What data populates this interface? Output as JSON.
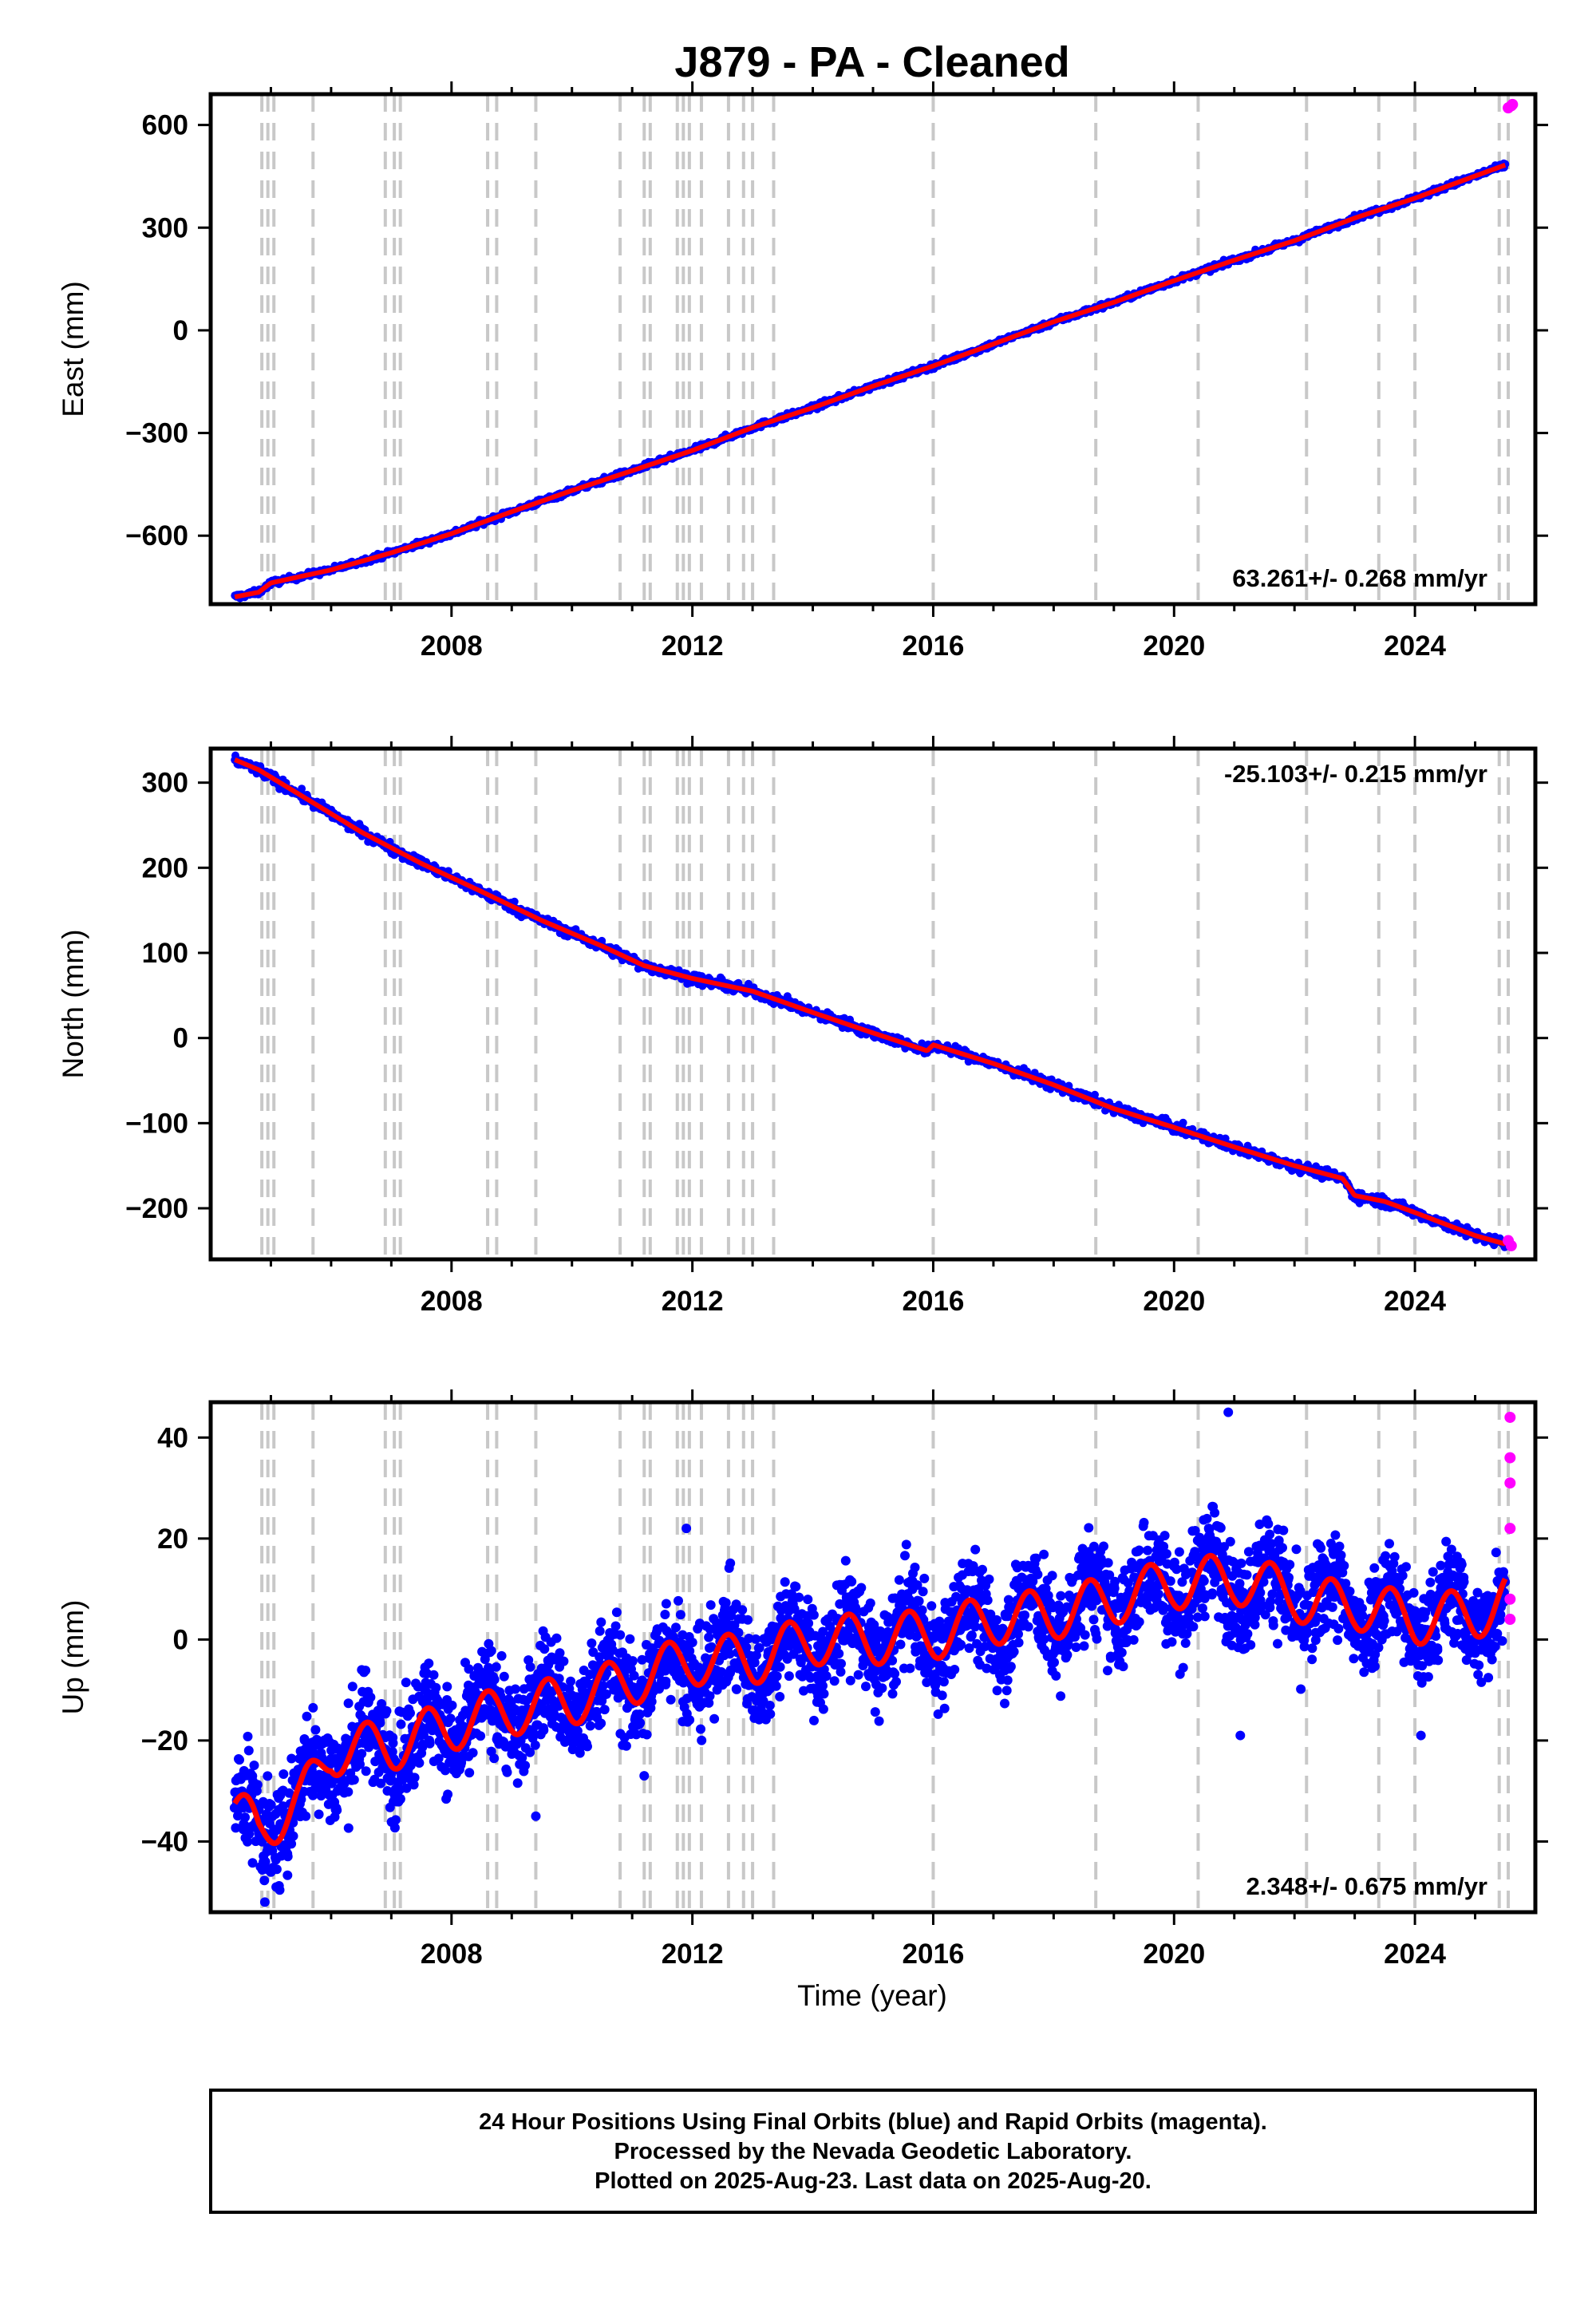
{
  "title": "J879  - PA - Cleaned",
  "xlabel": "Time (year)",
  "footer": {
    "line1": "24 Hour Positions Using Final Orbits (blue) and Rapid Orbits (magenta).",
    "line2": "Processed by the Nevada Geodetic Laboratory.",
    "line3": "Plotted on 2025-Aug-23. Last data on 2025-Aug-20."
  },
  "colors": {
    "final": "#0000ff",
    "rapid": "#ff00ff",
    "model": "#ff0000",
    "eventline": "#c8c8c8"
  },
  "chart_data": [
    {
      "type": "scatter",
      "ylabel": "East (mm)",
      "rate_label": "63.261+/- 0.268 mm/yr",
      "rate_position": "bottom-right",
      "xlim": [
        2004.0,
        2026.0
      ],
      "ylim": [
        -800,
        690
      ],
      "xticks": [
        2008,
        2012,
        2016,
        2020,
        2024
      ],
      "yticks": [
        -600,
        -300,
        0,
        300,
        600
      ],
      "ytick_labels": [
        "−600",
        "−300",
        "0",
        "300",
        "600"
      ],
      "series": [
        {
          "kind": "final",
          "x_range": [
            2004.4,
            2025.5
          ],
          "trend": [
            [
              2004.4,
              -779
            ],
            [
              2004.8,
              -765
            ],
            [
              2005.0,
              -738
            ],
            [
              2006.0,
              -700
            ],
            [
              2007.0,
              -650
            ],
            [
              2008.0,
              -594
            ],
            [
              2009.0,
              -530
            ],
            [
              2010.0,
              -468
            ],
            [
              2011.0,
              -410
            ],
            [
              2012.0,
              -351
            ],
            [
              2013.0,
              -284
            ],
            [
              2014.0,
              -226
            ],
            [
              2015.0,
              -163
            ],
            [
              2016.0,
              -104
            ],
            [
              2017.0,
              -40
            ],
            [
              2018.0,
              25
            ],
            [
              2019.0,
              82
            ],
            [
              2020.0,
              145
            ],
            [
              2021.0,
              205
            ],
            [
              2022.0,
              262
            ],
            [
              2023.0,
              328
            ],
            [
              2024.0,
              386
            ],
            [
              2025.0,
              451
            ],
            [
              2025.5,
              483
            ]
          ],
          "scatter": 4
        },
        {
          "kind": "rapid",
          "x": [
            2025.55,
            2025.6,
            2025.62
          ],
          "y": [
            650,
            656,
            660
          ]
        },
        {
          "kind": "model"
        }
      ],
      "y_is_east": true
    },
    {
      "type": "scatter",
      "ylabel": "North (mm)",
      "rate_label": "-25.103+/- 0.215 mm/yr",
      "rate_position": "top-right",
      "xlim": [
        2004.0,
        2026.0
      ],
      "ylim": [
        -260,
        340
      ],
      "xticks": [
        2008,
        2012,
        2016,
        2020,
        2024
      ],
      "yticks": [
        -200,
        -100,
        0,
        100,
        200,
        300
      ],
      "ytick_labels": [
        "−200",
        "−100",
        "0",
        "100",
        "200",
        "300"
      ],
      "series": [
        {
          "kind": "final",
          "x_range": [
            2004.4,
            2025.5
          ],
          "trend": [
            [
              2004.4,
              327
            ],
            [
              2004.8,
              315
            ],
            [
              2005.5,
              285
            ],
            [
              2006.5,
              242
            ],
            [
              2007.5,
              205
            ],
            [
              2008.5,
              172
            ],
            [
              2009.5,
              138
            ],
            [
              2010.5,
              108
            ],
            [
              2011.2,
              85
            ],
            [
              2012.0,
              70
            ],
            [
              2013.0,
              55
            ],
            [
              2014.0,
              30
            ],
            [
              2015.0,
              6
            ],
            [
              2015.9,
              -15
            ],
            [
              2016.0,
              -8
            ],
            [
              2017.0,
              -30
            ],
            [
              2018.0,
              -55
            ],
            [
              2019.0,
              -83
            ],
            [
              2020.0,
              -105
            ],
            [
              2021.0,
              -128
            ],
            [
              2022.0,
              -150
            ],
            [
              2022.8,
              -165
            ],
            [
              2023.0,
              -185
            ],
            [
              2023.5,
              -192
            ],
            [
              2024.0,
              -205
            ],
            [
              2025.0,
              -232
            ],
            [
              2025.5,
              -242
            ]
          ],
          "scatter": 3
        },
        {
          "kind": "rapid",
          "x": [
            2025.55,
            2025.6
          ],
          "y": [
            -238,
            -244
          ]
        },
        {
          "kind": "model"
        }
      ]
    },
    {
      "type": "scatter",
      "ylabel": "Up (mm)",
      "rate_label": "2.348+/- 0.675 mm/yr",
      "rate_position": "bottom-right",
      "xlim": [
        2004.0,
        2026.0
      ],
      "ylim": [
        -54,
        47
      ],
      "xticks": [
        2008,
        2012,
        2016,
        2020,
        2024
      ],
      "yticks": [
        -40,
        -20,
        0,
        20,
        40
      ],
      "ytick_labels": [
        "−40",
        "−20",
        "0",
        "20",
        "40"
      ],
      "series": [
        {
          "kind": "final",
          "x_range": [
            2004.4,
            2025.5
          ],
          "trend": [
            [
              2004.4,
              -34
            ],
            [
              2004.8,
              -38
            ],
            [
              2005.0,
              -36
            ],
            [
              2005.5,
              -32
            ],
            [
              2006.0,
              -22
            ],
            [
              2007.0,
              -21
            ],
            [
              2008.0,
              -17
            ],
            [
              2009.0,
              -14
            ],
            [
              2010.0,
              -12
            ],
            [
              2011.0,
              -8
            ],
            [
              2012.0,
              -4
            ],
            [
              2013.0,
              -4
            ],
            [
              2014.0,
              0
            ],
            [
              2015.0,
              0
            ],
            [
              2016.0,
              1
            ],
            [
              2017.0,
              4
            ],
            [
              2018.0,
              5
            ],
            [
              2019.0,
              8
            ],
            [
              2020.0,
              11
            ],
            [
              2021.0,
              12
            ],
            [
              2022.0,
              9
            ],
            [
              2022.3,
              7
            ],
            [
              2023.0,
              7
            ],
            [
              2024.0,
              4
            ],
            [
              2025.0,
              5
            ],
            [
              2025.5,
              8
            ]
          ],
          "seasonal_amplitude": 5,
          "scatter": 5
        },
        {
          "kind": "rapid",
          "x": [
            2025.58,
            2025.58,
            2025.58,
            2025.58,
            2025.58,
            2025.58
          ],
          "y": [
            44,
            36,
            31,
            22,
            8,
            4
          ]
        },
        {
          "kind": "model"
        }
      ],
      "outliers": [
        [
          2020.9,
          45
        ],
        [
          2021.1,
          -19
        ],
        [
          2024.1,
          -19
        ],
        [
          2009.4,
          -35
        ],
        [
          2011.2,
          -27
        ],
        [
          2011.9,
          22
        ],
        [
          2004.9,
          -52
        ]
      ]
    }
  ],
  "event_lines": [
    2004.85,
    2004.95,
    2005.05,
    2005.7,
    2006.9,
    2007.05,
    2007.15,
    2008.6,
    2008.75,
    2009.4,
    2010.8,
    2011.2,
    2011.3,
    2011.75,
    2011.85,
    2011.95,
    2012.15,
    2012.6,
    2012.85,
    2013.0,
    2013.35,
    2016.0,
    2018.7,
    2020.4,
    2022.2,
    2023.4,
    2024.0,
    2025.4,
    2025.55
  ]
}
